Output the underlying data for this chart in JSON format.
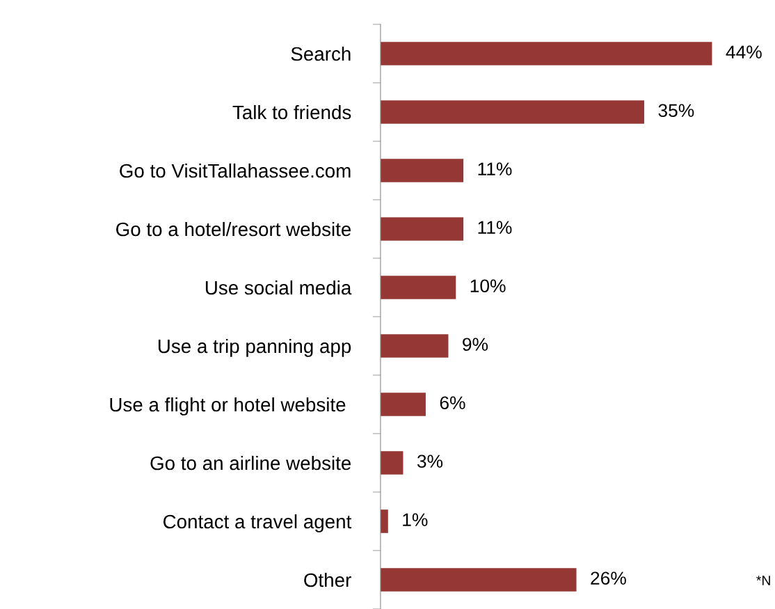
{
  "chart_data": {
    "type": "bar",
    "orientation": "horizontal",
    "categories": [
      "Search",
      "Talk to friends",
      "Go to VisitTallahassee.com",
      "Go to a hotel/resort website",
      "Use social media",
      "Use a trip panning app",
      "Use a flight or hotel website ",
      "Go to an airline website",
      "Contact a travel agent",
      "Other"
    ],
    "values": [
      44,
      35,
      11,
      11,
      10,
      9,
      6,
      3,
      1,
      26
    ],
    "value_labels": [
      "44%",
      "35%",
      "11%",
      "11%",
      "10%",
      "9%",
      "6%",
      "3%",
      "1%",
      "26%"
    ],
    "color": "#953735",
    "tick_labels": "y",
    "annotations": [
      "*N"
    ]
  }
}
